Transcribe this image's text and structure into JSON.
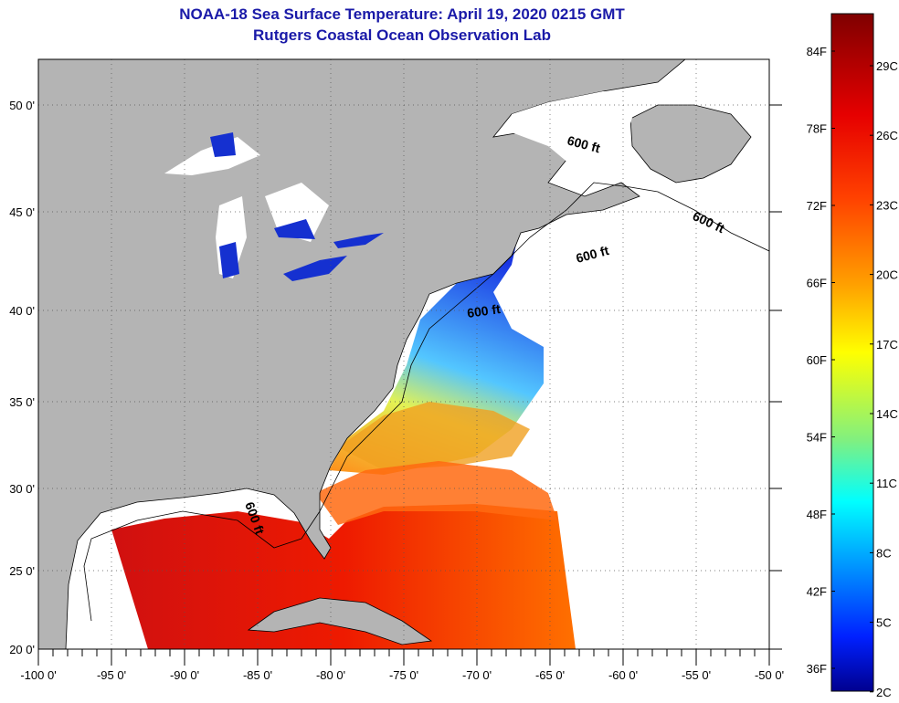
{
  "title": {
    "line1": "NOAA-18 Sea Surface Temperature:  April 19, 2020 0215 GMT",
    "line2": "Rutgers Coastal Ocean Observation Lab"
  },
  "map": {
    "lon_labels": [
      "-100 0'",
      "-95 0'",
      "-90 0'",
      "-85 0'",
      "-80 0'",
      "-75 0'",
      "-70 0'",
      "-65 0'",
      "-60 0'",
      "-55 0'",
      "-50 0'"
    ],
    "lat_labels": [
      "50 0'",
      "45 0'",
      "40 0'",
      "35 0'",
      "30 0'",
      "25 0'",
      "20 0'"
    ],
    "isobath_labels": [
      "600 ft",
      "600 ft",
      "600 ft",
      "600 ft",
      "600 ft"
    ],
    "land_color": "#b4b4b4",
    "ocean_color": "#ffffff"
  },
  "colorbar": {
    "f_labels": [
      "84F",
      "78F",
      "72F",
      "66F",
      "60F",
      "54F",
      "48F",
      "42F",
      "36F"
    ],
    "c_labels": [
      "29C",
      "26C",
      "23C",
      "20C",
      "17C",
      "14C",
      "11C",
      "8C",
      "5C",
      "2C"
    ],
    "stops": [
      "#7f0000",
      "#ff0000",
      "#ff8000",
      "#ffff00",
      "#80ff80",
      "#00ffff",
      "#0080ff",
      "#0000ff",
      "#00008f"
    ]
  }
}
